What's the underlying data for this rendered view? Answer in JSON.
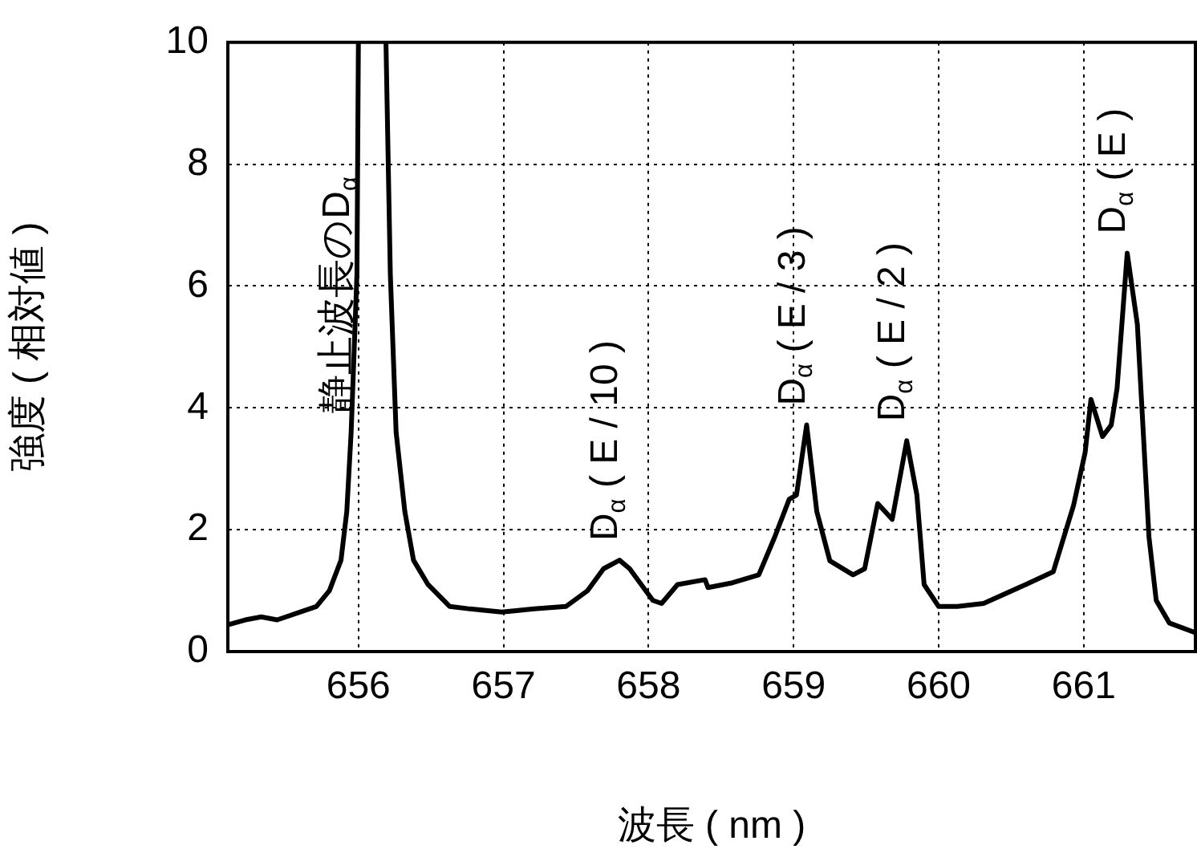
{
  "chart_data": {
    "type": "line",
    "xlabel": "波長 ( nm )",
    "ylabel": "強度 ( 相対値 )",
    "x": [
      655.1,
      655.22,
      655.33,
      655.44,
      655.6,
      655.71,
      655.8,
      655.88,
      655.92,
      655.95,
      655.99,
      656.0,
      656.1,
      656.19,
      656.22,
      656.26,
      656.32,
      656.38,
      656.48,
      656.63,
      656.77,
      656.99,
      657.21,
      657.43,
      657.58,
      657.69,
      657.8,
      657.87,
      657.95,
      658.03,
      658.09,
      658.2,
      658.39,
      658.41,
      658.58,
      658.76,
      658.87,
      658.97,
      659.02,
      659.09,
      659.16,
      659.25,
      659.41,
      659.49,
      659.58,
      659.68,
      659.78,
      659.85,
      659.9,
      660.0,
      660.13,
      660.31,
      660.6,
      660.79,
      660.93,
      661.01,
      661.05,
      661.13,
      661.19,
      661.23,
      661.3,
      661.37,
      661.45,
      661.5,
      661.59,
      661.77
    ],
    "series": [
      {
        "color": "#000000",
        "values": [
          0.44,
          0.52,
          0.57,
          0.52,
          0.65,
          0.74,
          1.0,
          1.5,
          2.3,
          3.6,
          6.2,
          10,
          null,
          10,
          6.2,
          3.6,
          2.3,
          1.5,
          1.1,
          0.74,
          0.7,
          0.65,
          0.7,
          0.74,
          1.0,
          1.36,
          1.5,
          1.36,
          1.1,
          0.84,
          0.79,
          1.1,
          1.18,
          1.05,
          1.13,
          1.26,
          1.88,
          2.5,
          2.57,
          3.72,
          2.3,
          1.49,
          1.26,
          1.36,
          2.43,
          2.17,
          3.46,
          2.57,
          1.1,
          0.74,
          0.74,
          0.79,
          1.1,
          1.31,
          2.4,
          3.27,
          4.14,
          3.53,
          3.72,
          4.32,
          6.54,
          5.37,
          1.88,
          0.84,
          0.47,
          0.31
        ]
      }
    ],
    "xlim": [
      655.1,
      661.77
    ],
    "xticks": [
      656,
      657,
      658,
      659,
      660,
      661
    ],
    "ylim": [
      0,
      10
    ],
    "yticks": [
      0,
      2,
      4,
      6,
      8,
      10
    ],
    "grid": true,
    "legend": false,
    "marker": "none",
    "line_style": "solid",
    "annotations": [
      {
        "text": "静止波長のD$_{α}$",
        "x": 655.95,
        "y": 3.6
      },
      {
        "text": "D$_{α}$ ( E / 10 )",
        "x": 657.8,
        "y": 1.5
      },
      {
        "text": "D$_{α}$ ( E / 3 )",
        "x": 659.09,
        "y": 3.72
      },
      {
        "text": "D$_{α}$ ( E / 2 )",
        "x": 659.78,
        "y": 3.46
      },
      {
        "text": "D$_{α}$ ( E )",
        "x": 661.3,
        "y": 6.54
      }
    ]
  }
}
